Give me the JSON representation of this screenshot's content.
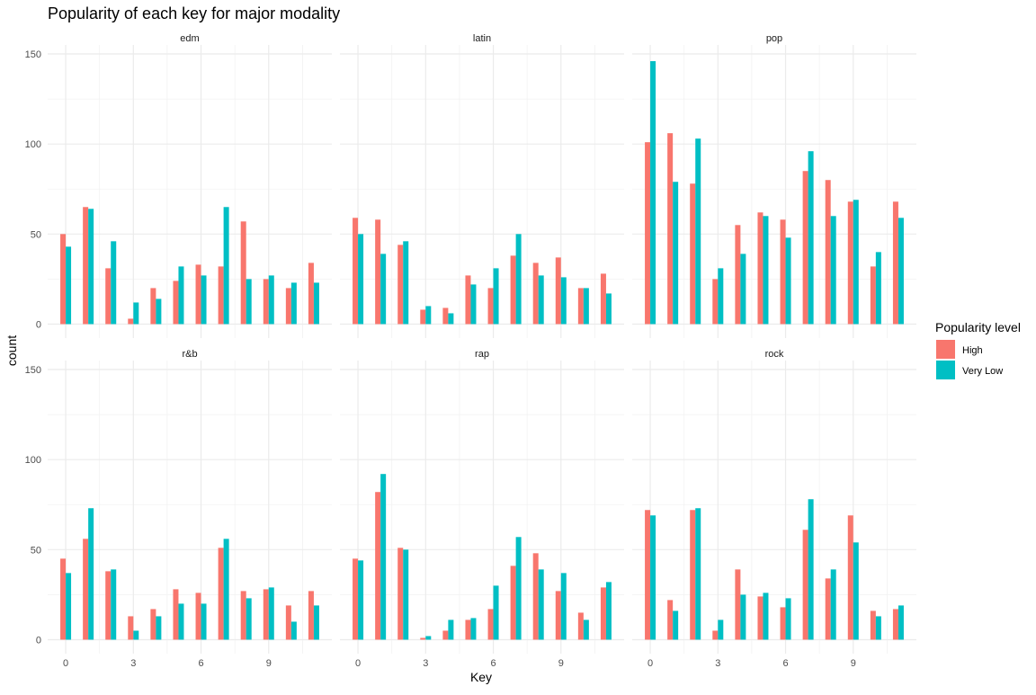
{
  "chart_data": {
    "type": "bar",
    "title": "Popularity of each key for major modality",
    "xlabel": "Key",
    "ylabel": "count",
    "x_ticks": [
      0,
      3,
      6,
      9
    ],
    "y_ticks": [
      0,
      50,
      100,
      150
    ],
    "ylim": [
      0,
      155
    ],
    "grid": true,
    "legend": {
      "title": "Popularity level",
      "position": "right",
      "entries": [
        {
          "name": "High",
          "color": "#F8766D"
        },
        {
          "name": "Very Low",
          "color": "#00BFC4"
        }
      ]
    },
    "categories": [
      0,
      1,
      2,
      3,
      4,
      5,
      6,
      7,
      8,
      9,
      10,
      11
    ],
    "panels": [
      {
        "label": "edm",
        "series": [
          {
            "name": "High",
            "values": [
              50,
              65,
              31,
              3,
              20,
              24,
              33,
              32,
              57,
              25,
              20,
              34
            ]
          },
          {
            "name": "Very Low",
            "values": [
              43,
              64,
              46,
              12,
              14,
              32,
              27,
              65,
              25,
              27,
              23,
              23
            ]
          }
        ]
      },
      {
        "label": "latin",
        "series": [
          {
            "name": "High",
            "values": [
              59,
              58,
              44,
              8,
              9,
              27,
              20,
              38,
              34,
              37,
              20,
              28
            ]
          },
          {
            "name": "Very Low",
            "values": [
              50,
              39,
              46,
              10,
              6,
              22,
              31,
              50,
              27,
              26,
              20,
              17
            ]
          }
        ]
      },
      {
        "label": "pop",
        "series": [
          {
            "name": "High",
            "values": [
              101,
              106,
              78,
              25,
              55,
              62,
              58,
              85,
              80,
              68,
              32,
              68
            ]
          },
          {
            "name": "Very Low",
            "values": [
              146,
              79,
              103,
              31,
              39,
              60,
              48,
              96,
              60,
              69,
              40,
              59
            ]
          }
        ]
      },
      {
        "label": "r&b",
        "series": [
          {
            "name": "High",
            "values": [
              45,
              56,
              38,
              13,
              17,
              28,
              26,
              51,
              27,
              28,
              19,
              27
            ]
          },
          {
            "name": "Very Low",
            "values": [
              37,
              73,
              39,
              5,
              13,
              20,
              20,
              56,
              23,
              29,
              10,
              19
            ]
          }
        ]
      },
      {
        "label": "rap",
        "series": [
          {
            "name": "High",
            "values": [
              45,
              82,
              51,
              1,
              5,
              11,
              17,
              41,
              48,
              27,
              15,
              29
            ]
          },
          {
            "name": "Very Low",
            "values": [
              44,
              92,
              50,
              2,
              11,
              12,
              30,
              57,
              39,
              37,
              11,
              32
            ]
          }
        ]
      },
      {
        "label": "rock",
        "series": [
          {
            "name": "High",
            "values": [
              72,
              22,
              72,
              5,
              39,
              24,
              18,
              61,
              34,
              69,
              16,
              17
            ]
          },
          {
            "name": "Very Low",
            "values": [
              69,
              16,
              73,
              11,
              25,
              26,
              23,
              78,
              39,
              54,
              13,
              19
            ]
          }
        ]
      }
    ]
  }
}
